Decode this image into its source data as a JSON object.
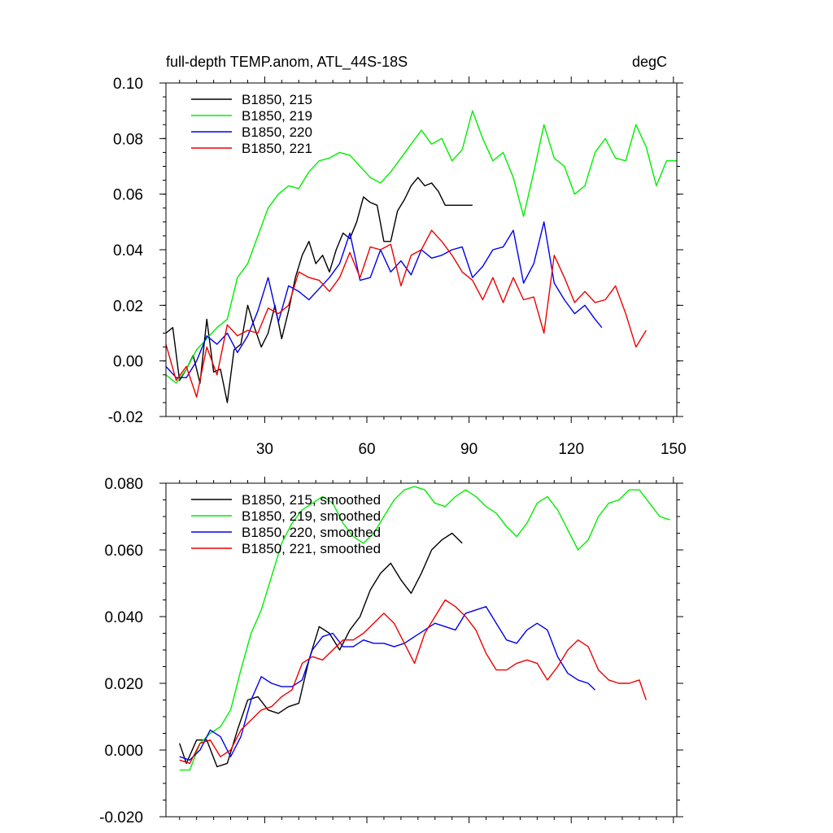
{
  "chart_data": [
    {
      "type": "line",
      "title": "full-depth TEMP.anom, ATL_44S-18S",
      "units_label": "degC",
      "xlabel": "",
      "ylabel": "",
      "xlim": [
        1,
        151
      ],
      "ylim": [
        -0.02,
        0.1
      ],
      "x_ticks": [
        30,
        60,
        90,
        120,
        150
      ],
      "x_tick_labels": [
        "30",
        "60",
        "90",
        "120",
        "150"
      ],
      "y_ticks": [
        -0.02,
        0.0,
        0.02,
        0.04,
        0.06,
        0.08,
        0.1
      ],
      "y_tick_labels": [
        "-0.02",
        "0.00",
        "0.02",
        "0.04",
        "0.06",
        "0.08",
        "0.10"
      ],
      "legend_position": "top-left",
      "series": [
        {
          "name": "B1850, 215",
          "color": "#000000",
          "x": [
            1,
            3,
            5,
            7,
            9,
            11,
            13,
            15,
            17,
            19,
            21,
            23,
            25,
            27,
            29,
            31,
            33,
            35,
            37,
            39,
            41,
            43,
            45,
            47,
            49,
            51,
            53,
            55,
            57,
            59,
            61,
            63,
            65,
            67,
            69,
            71,
            73,
            75,
            77,
            79,
            81,
            83,
            85,
            87,
            89,
            91
          ],
          "y": [
            0.01,
            0.012,
            -0.007,
            -0.003,
            0.002,
            -0.008,
            0.015,
            -0.004,
            -0.003,
            -0.015,
            0.004,
            0.006,
            0.02,
            0.012,
            0.005,
            0.01,
            0.02,
            0.008,
            0.018,
            0.03,
            0.038,
            0.043,
            0.035,
            0.038,
            0.032,
            0.04,
            0.046,
            0.044,
            0.05,
            0.059,
            0.057,
            0.056,
            0.043,
            0.043,
            0.054,
            0.058,
            0.063,
            0.066,
            0.063,
            0.064,
            0.061,
            0.056,
            0.056,
            0.056,
            0.056,
            0.056
          ]
        },
        {
          "name": "B1850, 219",
          "color": "#00ee00",
          "x": [
            1,
            4,
            7,
            10,
            13,
            16,
            19,
            22,
            25,
            28,
            31,
            34,
            37,
            40,
            43,
            46,
            49,
            52,
            55,
            58,
            61,
            64,
            67,
            70,
            73,
            76,
            79,
            82,
            85,
            88,
            91,
            94,
            97,
            100,
            103,
            106,
            109,
            112,
            115,
            118,
            121,
            124,
            127,
            130,
            133,
            136,
            139,
            142,
            145,
            148,
            151
          ],
          "y": [
            -0.005,
            -0.008,
            -0.003,
            0.004,
            0.008,
            0.012,
            0.015,
            0.03,
            0.035,
            0.045,
            0.055,
            0.06,
            0.063,
            0.062,
            0.068,
            0.072,
            0.073,
            0.075,
            0.074,
            0.07,
            0.066,
            0.064,
            0.068,
            0.073,
            0.078,
            0.083,
            0.078,
            0.08,
            0.072,
            0.076,
            0.09,
            0.08,
            0.072,
            0.075,
            0.066,
            0.052,
            0.068,
            0.085,
            0.073,
            0.07,
            0.06,
            0.063,
            0.075,
            0.08,
            0.073,
            0.072,
            0.085,
            0.077,
            0.063,
            0.072,
            0.072
          ]
        },
        {
          "name": "B1850, 220",
          "color": "#0000ee",
          "x": [
            1,
            4,
            7,
            10,
            13,
            16,
            19,
            22,
            25,
            28,
            31,
            34,
            37,
            40,
            43,
            46,
            49,
            52,
            55,
            58,
            61,
            64,
            67,
            70,
            73,
            76,
            79,
            82,
            85,
            88,
            91,
            94,
            97,
            100,
            103,
            106,
            109,
            112,
            115,
            118,
            121,
            124,
            127,
            129
          ],
          "y": [
            -0.002,
            -0.006,
            -0.006,
            0.0,
            0.009,
            0.006,
            0.01,
            0.003,
            0.009,
            0.018,
            0.03,
            0.014,
            0.027,
            0.025,
            0.022,
            0.026,
            0.03,
            0.035,
            0.046,
            0.029,
            0.03,
            0.04,
            0.032,
            0.036,
            0.031,
            0.04,
            0.037,
            0.038,
            0.04,
            0.041,
            0.03,
            0.034,
            0.04,
            0.041,
            0.047,
            0.028,
            0.035,
            0.05,
            0.028,
            0.022,
            0.017,
            0.02,
            0.015,
            0.012
          ]
        },
        {
          "name": "B1850, 221",
          "color": "#ee0000",
          "x": [
            1,
            4,
            7,
            10,
            13,
            16,
            19,
            22,
            25,
            28,
            31,
            34,
            37,
            40,
            43,
            46,
            49,
            52,
            55,
            58,
            61,
            64,
            67,
            70,
            73,
            76,
            79,
            82,
            85,
            88,
            91,
            94,
            97,
            100,
            103,
            106,
            109,
            112,
            115,
            118,
            121,
            124,
            127,
            130,
            133,
            136,
            139,
            142
          ],
          "y": [
            0.006,
            -0.007,
            -0.002,
            -0.013,
            0.005,
            -0.005,
            0.013,
            0.009,
            0.011,
            0.01,
            0.019,
            0.017,
            0.02,
            0.032,
            0.03,
            0.029,
            0.025,
            0.03,
            0.039,
            0.03,
            0.041,
            0.04,
            0.042,
            0.027,
            0.038,
            0.04,
            0.047,
            0.043,
            0.038,
            0.032,
            0.029,
            0.022,
            0.03,
            0.021,
            0.03,
            0.022,
            0.023,
            0.01,
            0.038,
            0.03,
            0.021,
            0.025,
            0.021,
            0.022,
            0.027,
            0.017,
            0.005,
            0.011
          ]
        }
      ]
    },
    {
      "type": "line",
      "title": "",
      "xlabel": "",
      "ylabel": "",
      "xlim": [
        1,
        151
      ],
      "ylim": [
        -0.02,
        0.08
      ],
      "x_ticks": [
        30,
        60,
        90,
        120,
        150
      ],
      "x_tick_labels": [],
      "y_ticks": [
        -0.02,
        0.0,
        0.02,
        0.04,
        0.06,
        0.08
      ],
      "y_tick_labels": [
        "-0.020",
        "0.000",
        "0.020",
        "0.040",
        "0.060",
        "0.080"
      ],
      "legend_position": "top-left",
      "series": [
        {
          "name": "B1850, 215, smoothed",
          "color": "#000000",
          "x": [
            5,
            7,
            10,
            13,
            16,
            19,
            22,
            25,
            28,
            31,
            34,
            37,
            40,
            43,
            46,
            49,
            52,
            55,
            58,
            61,
            64,
            67,
            70,
            73,
            76,
            79,
            82,
            85,
            88
          ],
          "y": [
            0.002,
            -0.004,
            0.003,
            0.003,
            -0.005,
            -0.004,
            0.006,
            0.015,
            0.016,
            0.012,
            0.011,
            0.013,
            0.014,
            0.027,
            0.037,
            0.035,
            0.03,
            0.036,
            0.04,
            0.048,
            0.053,
            0.056,
            0.051,
            0.047,
            0.053,
            0.06,
            0.063,
            0.065,
            0.062
          ]
        },
        {
          "name": "B1850, 219, smoothed",
          "color": "#00ee00",
          "x": [
            5,
            8,
            11,
            14,
            17,
            20,
            23,
            26,
            29,
            32,
            35,
            38,
            41,
            44,
            47,
            50,
            53,
            56,
            59,
            62,
            65,
            68,
            71,
            74,
            77,
            80,
            83,
            86,
            89,
            92,
            95,
            98,
            101,
            104,
            107,
            110,
            113,
            116,
            119,
            122,
            125,
            128,
            131,
            134,
            137,
            140,
            143,
            146,
            149
          ],
          "y": [
            -0.006,
            -0.006,
            0.002,
            0.005,
            0.007,
            0.012,
            0.024,
            0.035,
            0.042,
            0.052,
            0.062,
            0.068,
            0.072,
            0.074,
            0.076,
            0.074,
            0.068,
            0.064,
            0.062,
            0.065,
            0.07,
            0.075,
            0.078,
            0.079,
            0.078,
            0.074,
            0.073,
            0.076,
            0.078,
            0.076,
            0.073,
            0.071,
            0.067,
            0.064,
            0.068,
            0.074,
            0.076,
            0.072,
            0.066,
            0.06,
            0.063,
            0.07,
            0.074,
            0.075,
            0.078,
            0.078,
            0.074,
            0.07,
            0.069
          ]
        },
        {
          "name": "B1850, 220, smoothed",
          "color": "#0000ee",
          "x": [
            5,
            8,
            11,
            14,
            17,
            20,
            23,
            26,
            29,
            32,
            35,
            38,
            41,
            44,
            47,
            50,
            53,
            56,
            59,
            62,
            65,
            68,
            71,
            74,
            77,
            80,
            83,
            86,
            89,
            92,
            95,
            98,
            101,
            104,
            107,
            110,
            113,
            116,
            119,
            122,
            125,
            127
          ],
          "y": [
            -0.002,
            -0.003,
            0.0,
            0.006,
            0.004,
            -0.002,
            0.004,
            0.015,
            0.022,
            0.02,
            0.019,
            0.019,
            0.021,
            0.03,
            0.034,
            0.035,
            0.031,
            0.031,
            0.033,
            0.032,
            0.032,
            0.031,
            0.032,
            0.034,
            0.036,
            0.038,
            0.037,
            0.036,
            0.041,
            0.042,
            0.043,
            0.038,
            0.033,
            0.032,
            0.036,
            0.038,
            0.036,
            0.028,
            0.023,
            0.021,
            0.02,
            0.018
          ]
        },
        {
          "name": "B1850, 221, smoothed",
          "color": "#ee0000",
          "x": [
            5,
            8,
            11,
            14,
            17,
            20,
            23,
            26,
            29,
            32,
            35,
            38,
            41,
            44,
            47,
            50,
            53,
            56,
            59,
            62,
            65,
            68,
            71,
            74,
            77,
            80,
            83,
            86,
            89,
            92,
            95,
            98,
            101,
            104,
            107,
            110,
            113,
            116,
            119,
            122,
            125,
            128,
            131,
            134,
            137,
            140,
            142
          ],
          "y": [
            -0.003,
            -0.004,
            0.002,
            0.003,
            -0.002,
            0.0,
            0.006,
            0.009,
            0.012,
            0.013,
            0.016,
            0.018,
            0.026,
            0.028,
            0.027,
            0.03,
            0.033,
            0.033,
            0.035,
            0.038,
            0.041,
            0.038,
            0.032,
            0.026,
            0.035,
            0.04,
            0.045,
            0.043,
            0.04,
            0.036,
            0.029,
            0.024,
            0.024,
            0.026,
            0.027,
            0.026,
            0.021,
            0.025,
            0.03,
            0.033,
            0.031,
            0.024,
            0.021,
            0.02,
            0.02,
            0.021,
            0.015
          ]
        }
      ]
    }
  ]
}
